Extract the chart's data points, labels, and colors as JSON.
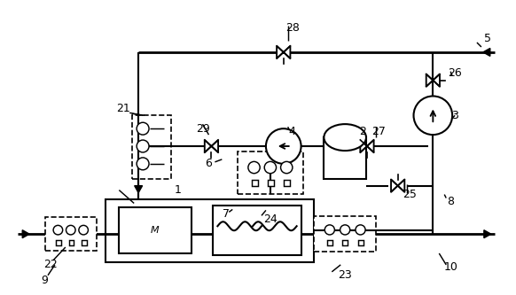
{
  "bg_color": "#ffffff",
  "line_color": "#000000",
  "lw": 1.5,
  "fig_w": 5.82,
  "fig_h": 3.33,
  "dpi": 100
}
